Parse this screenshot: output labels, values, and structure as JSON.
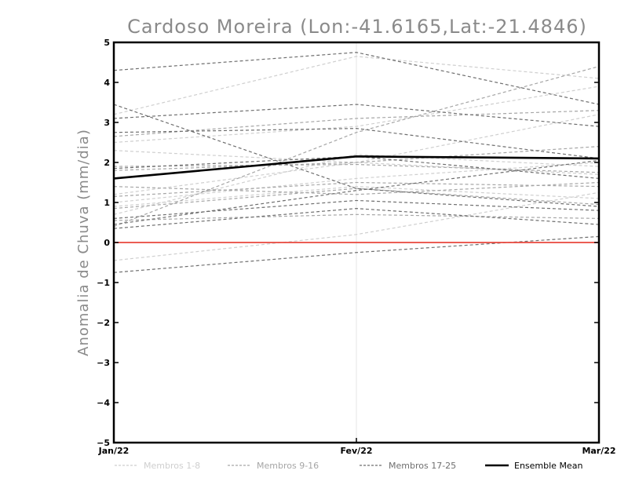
{
  "chart_data": {
    "type": "line",
    "title": "Cardoso Moreira (Lon:-41.6165,Lat:-21.4846)",
    "ylabel": "Anomalia de Chuva (mm/dia)",
    "xlabel": "",
    "categories": [
      "Jan/22",
      "Fev/22",
      "Mar/22"
    ],
    "ylim": [
      -5,
      5
    ],
    "yticks": [
      "5",
      "4",
      "3",
      "2",
      "1",
      "0",
      "−1",
      "−2",
      "−3",
      "−4",
      "−5"
    ],
    "ytick_values": [
      5,
      4,
      3,
      2,
      1,
      0,
      -1,
      -2,
      -3,
      -4,
      -5
    ],
    "zero_line_color": "#e8463c",
    "groups": [
      {
        "label": "Membros 1-8",
        "color": "#cfcfcf",
        "dash": true,
        "series": [
          {
            "values": [
              3.2,
              4.65,
              4.1
            ]
          },
          {
            "values": [
              2.5,
              2.9,
              3.9
            ]
          },
          {
            "values": [
              2.3,
              2.0,
              3.2
            ]
          },
          {
            "values": [
              1.2,
              2.0,
              1.7
            ]
          },
          {
            "values": [
              0.9,
              1.4,
              1.1
            ]
          },
          {
            "values": [
              0.7,
              2.2,
              1.9
            ]
          },
          {
            "values": [
              1.0,
              1.6,
              2.0
            ]
          },
          {
            "values": [
              -0.45,
              0.2,
              1.25
            ]
          }
        ]
      },
      {
        "label": "Membros 9-16",
        "color": "#a6a6a6",
        "dash": true,
        "series": [
          {
            "values": [
              2.65,
              3.1,
              3.3
            ]
          },
          {
            "values": [
              1.8,
              2.0,
              2.4
            ]
          },
          {
            "values": [
              1.9,
              1.95,
              1.75
            ]
          },
          {
            "values": [
              1.4,
              1.2,
              1.5
            ]
          },
          {
            "values": [
              1.15,
              1.5,
              1.4
            ]
          },
          {
            "values": [
              0.55,
              0.7,
              0.6
            ]
          },
          {
            "values": [
              0.85,
              1.35,
              0.95
            ]
          },
          {
            "values": [
              0.4,
              2.75,
              4.4
            ]
          }
        ]
      },
      {
        "label": "Membros 17-25",
        "color": "#6f6f6f",
        "dash": true,
        "series": [
          {
            "values": [
              4.3,
              4.75,
              3.45
            ]
          },
          {
            "values": [
              3.1,
              3.45,
              2.9
            ]
          },
          {
            "values": [
              2.75,
              2.85,
              2.1
            ]
          },
          {
            "values": [
              3.45,
              1.35,
              0.9
            ]
          },
          {
            "values": [
              1.85,
              2.15,
              1.6
            ]
          },
          {
            "values": [
              0.6,
              1.05,
              0.8
            ]
          },
          {
            "values": [
              0.45,
              1.3,
              2.05
            ]
          },
          {
            "values": [
              0.35,
              0.85,
              0.45
            ]
          },
          {
            "values": [
              -0.75,
              -0.25,
              0.15
            ]
          }
        ]
      },
      {
        "label": "Ensemble Mean",
        "color": "#000000",
        "dash": false,
        "series": [
          {
            "values": [
              1.6,
              2.15,
              2.1
            ]
          }
        ]
      }
    ],
    "legend_position": "bottom"
  }
}
